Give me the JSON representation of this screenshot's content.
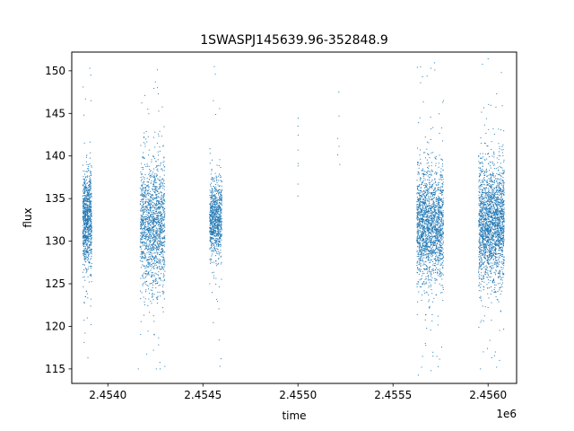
{
  "chart_data": {
    "type": "scatter",
    "title": "1SWASPJ145639.96-352848.9",
    "xlabel": "time",
    "ylabel": "flux",
    "x_offset_label": "1e6",
    "xlim": [
      2453810,
      2456150
    ],
    "ylim": [
      113.3,
      152.2
    ],
    "x_ticks": [
      2.454,
      2.4545,
      2.455,
      2.4555,
      2.456
    ],
    "x_tick_labels": [
      "2.4540",
      "2.4545",
      "2.4550",
      "2.4555",
      "2.4560"
    ],
    "y_ticks": [
      115,
      120,
      125,
      130,
      135,
      140,
      145,
      150
    ],
    "y_tick_labels": [
      "115",
      "120",
      "125",
      "130",
      "135",
      "140",
      "145",
      "150"
    ],
    "grid": false,
    "marker_color": "#1f77b4",
    "series": [
      {
        "clusters": [
          {
            "x_range": [
              2453868,
              2453915
            ],
            "center": 132.5,
            "spread": 2.8,
            "count": 900,
            "outliers": [
              [
                2453870,
                148.1
              ],
              [
                2453882,
                146.7
              ],
              [
                2453905,
                150.3
              ],
              [
                2453910,
                149.5
              ],
              [
                2453912,
                146.5
              ],
              [
                2453911,
                123.2
              ],
              [
                2453912,
                120.2
              ],
              [
                2453880,
                119.2
              ],
              [
                2453895,
                116.3
              ]
            ]
          },
          {
            "x_range": [
              2454170,
              2454300
            ],
            "center": 131.8,
            "spread": 3.8,
            "count": 1500,
            "outliers": [
              [
                2454195,
                147.1
              ],
              [
                2454210,
                145.5
              ],
              [
                2454250,
                148.7
              ],
              [
                2454265,
                147.3
              ],
              [
                2454240,
                117.2
              ],
              [
                2454255,
                115.0
              ],
              [
                2454275,
                115.0
              ],
              [
                2454300,
                115.3
              ],
              [
                2454160,
                115.0
              ],
              [
                2454245,
                119.0
              ]
            ]
          },
          {
            "x_range": [
              2454535,
              2454600
            ],
            "center": 132.5,
            "spread": 2.2,
            "count": 850,
            "outliers": [
              [
                2454560,
                150.5
              ],
              [
                2454565,
                149.6
              ],
              [
                2454555,
                146.5
              ],
              [
                2454590,
                115.3
              ],
              [
                2454595,
                116.2
              ],
              [
                2454585,
                118.4
              ]
            ]
          },
          {
            "x_range": [
              2454999,
              2455001
            ],
            "center": 140.0,
            "spread": 2.5,
            "count": 6,
            "outliers": [
              [
                2455000,
                143.5
              ],
              [
                2455000,
                136.7
              ]
            ]
          },
          {
            "x_range": [
              2455209,
              2455221
            ],
            "center": 142.0,
            "spread": 3.5,
            "count": 4,
            "outliers": [
              [
                2455215,
                147.5
              ],
              [
                2455220,
                139.0
              ]
            ]
          },
          {
            "x_range": [
              2455625,
              2455765
            ],
            "center": 132.0,
            "spread": 3.3,
            "count": 1900,
            "outliers": [
              [
                2455628,
                150.4
              ],
              [
                2455645,
                148.6
              ],
              [
                2455655,
                149.3
              ],
              [
                2455700,
                150.3
              ],
              [
                2455720,
                150.1
              ],
              [
                2455765,
                146.5
              ],
              [
                2455650,
                115.2
              ],
              [
                2455700,
                114.8
              ],
              [
                2455710,
                116.5
              ],
              [
                2455670,
                118.0
              ]
            ]
          },
          {
            "x_range": [
              2455950,
              2456085
            ],
            "center": 132.0,
            "spread": 3.5,
            "count": 2100,
            "outliers": [
              [
                2456070,
                149.8
              ],
              [
                2456045,
                147.3
              ],
              [
                2456075,
                145.9
              ],
              [
                2455960,
                115.0
              ],
              [
                2456045,
                115.2
              ],
              [
                2456060,
                116.0
              ],
              [
                2455975,
                117.0
              ]
            ]
          }
        ]
      }
    ]
  }
}
